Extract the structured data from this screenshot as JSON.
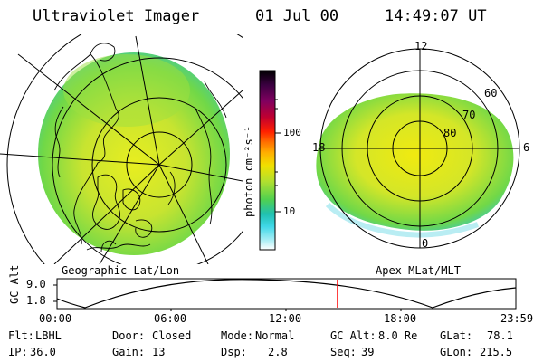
{
  "header": {
    "instrument": "Ultraviolet Imager",
    "date": "01 Jul 00",
    "time": "14:49:07 UT"
  },
  "left_panel": {
    "caption": "Geographic Lat/Lon"
  },
  "right_panel": {
    "caption": "Apex MLat/MLT",
    "mlt_labels": [
      "12",
      "18",
      "6",
      "0"
    ],
    "mlat_labels": [
      "60",
      "70",
      "80"
    ]
  },
  "colorbar": {
    "unit_label": "photon cm⁻²s⁻¹",
    "tick_labels": [
      "100",
      "10"
    ],
    "scale": "log",
    "colors": [
      "#000000",
      "#3a0040",
      "#800060",
      "#c00030",
      "#ff2000",
      "#ff7000",
      "#ffb000",
      "#f0e000",
      "#b0e030",
      "#50d050",
      "#20c0b0",
      "#40d8e8",
      "#a0ecf4",
      "#ffffff"
    ]
  },
  "altitude_plot": {
    "y_axis_label": "GC Alt",
    "y_ticks": [
      "9.0",
      "1.8"
    ],
    "x_ticks": [
      "00:00",
      "06:00",
      "12:00",
      "18:00",
      "23:59"
    ],
    "current_time_marker_color": "#ff0000"
  },
  "status": {
    "flt_label": "Flt:",
    "flt_value": "LBHL",
    "ip_label": "IP:",
    "ip_value": "36.0",
    "door_label": "Door:",
    "door_value": "Closed",
    "gain_label": "Gain:",
    "gain_value": "13",
    "mode_label": "Mode:",
    "mode_value": "Normal",
    "dsp_label": "Dsp:",
    "dsp_value": "2.8",
    "gcalt_label": "GC Alt:",
    "gcalt_value": "8.0 Re",
    "seq_label": "Seq:",
    "seq_value": "39",
    "glat_label": "GLat:",
    "glat_value": "78.1",
    "glon_label": "GLon:",
    "glon_value": "215.5"
  }
}
